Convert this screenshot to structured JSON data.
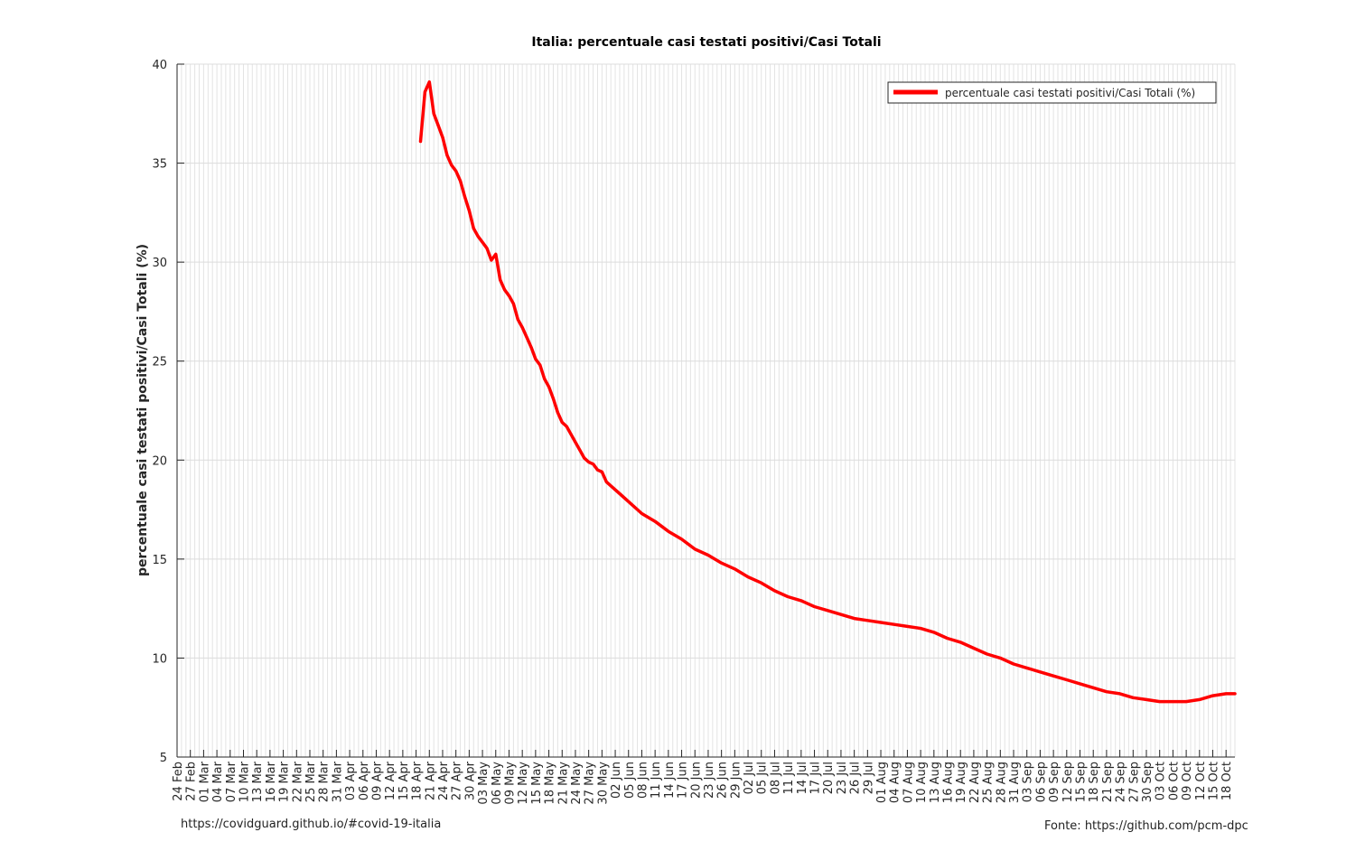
{
  "chart_data": {
    "type": "line",
    "title": "Italia: percentuale casi testati positivi/Casi Totali",
    "xlabel": "",
    "ylabel": "percentuale casi testati positivi/Casi Totali (%)",
    "ylim": [
      5,
      40
    ],
    "yticks": [
      5,
      10,
      15,
      20,
      25,
      30,
      35,
      40
    ],
    "xlim": [
      "2020-02-24",
      "2020-10-20"
    ],
    "xticks": [
      "24 Feb",
      "27 Feb",
      "01 Mar",
      "04 Mar",
      "07 Mar",
      "10 Mar",
      "13 Mar",
      "16 Mar",
      "19 Mar",
      "22 Mar",
      "25 Mar",
      "28 Mar",
      "31 Mar",
      "03 Apr",
      "06 Apr",
      "09 Apr",
      "12 Apr",
      "15 Apr",
      "18 Apr",
      "21 Apr",
      "24 Apr",
      "27 Apr",
      "30 Apr",
      "03 May",
      "06 May",
      "09 May",
      "12 May",
      "15 May",
      "18 May",
      "21 May",
      "24 May",
      "27 May",
      "30 May",
      "02 Jun",
      "05 Jun",
      "08 Jun",
      "11 Jun",
      "14 Jun",
      "17 Jun",
      "20 Jun",
      "23 Jun",
      "26 Jun",
      "29 Jun",
      "02 Jul",
      "05 Jul",
      "08 Jul",
      "11 Jul",
      "14 Jul",
      "17 Jul",
      "20 Jul",
      "23 Jul",
      "26 Jul",
      "29 Jul",
      "01 Aug",
      "04 Aug",
      "07 Aug",
      "10 Aug",
      "13 Aug",
      "16 Aug",
      "19 Aug",
      "22 Aug",
      "25 Aug",
      "28 Aug",
      "31 Aug",
      "03 Sep",
      "06 Sep",
      "09 Sep",
      "12 Sep",
      "15 Sep",
      "18 Sep",
      "21 Sep",
      "24 Sep",
      "27 Sep",
      "30 Sep",
      "03 Oct",
      "06 Oct",
      "09 Oct",
      "12 Oct",
      "15 Oct",
      "18 Oct"
    ],
    "grid": true,
    "legend_position": "top-right",
    "series": [
      {
        "name": "percentuale casi testati positivi/Casi Totali (%)",
        "color": "#ff0000",
        "points": [
          [
            "2020-04-19",
            36.1
          ],
          [
            "2020-04-20",
            38.6
          ],
          [
            "2020-04-21",
            39.1
          ],
          [
            "2020-04-22",
            37.5
          ],
          [
            "2020-04-23",
            36.9
          ],
          [
            "2020-04-24",
            36.3
          ],
          [
            "2020-04-25",
            35.4
          ],
          [
            "2020-04-26",
            34.9
          ],
          [
            "2020-04-27",
            34.6
          ],
          [
            "2020-04-28",
            34.1
          ],
          [
            "2020-04-29",
            33.3
          ],
          [
            "2020-04-30",
            32.6
          ],
          [
            "2020-05-01",
            31.7
          ],
          [
            "2020-05-02",
            31.3
          ],
          [
            "2020-05-03",
            31.0
          ],
          [
            "2020-05-04",
            30.7
          ],
          [
            "2020-05-05",
            30.1
          ],
          [
            "2020-05-06",
            30.4
          ],
          [
            "2020-05-07",
            29.1
          ],
          [
            "2020-05-08",
            28.6
          ],
          [
            "2020-05-09",
            28.3
          ],
          [
            "2020-05-10",
            27.9
          ],
          [
            "2020-05-11",
            27.1
          ],
          [
            "2020-05-12",
            26.7
          ],
          [
            "2020-05-13",
            26.2
          ],
          [
            "2020-05-14",
            25.7
          ],
          [
            "2020-05-15",
            25.1
          ],
          [
            "2020-05-16",
            24.8
          ],
          [
            "2020-05-17",
            24.1
          ],
          [
            "2020-05-18",
            23.7
          ],
          [
            "2020-05-19",
            23.1
          ],
          [
            "2020-05-20",
            22.4
          ],
          [
            "2020-05-21",
            21.9
          ],
          [
            "2020-05-22",
            21.7
          ],
          [
            "2020-05-23",
            21.3
          ],
          [
            "2020-05-24",
            20.9
          ],
          [
            "2020-05-25",
            20.5
          ],
          [
            "2020-05-26",
            20.1
          ],
          [
            "2020-05-27",
            19.9
          ],
          [
            "2020-05-28",
            19.8
          ],
          [
            "2020-05-29",
            19.5
          ],
          [
            "2020-05-30",
            19.4
          ],
          [
            "2020-05-31",
            18.9
          ],
          [
            "2020-06-01",
            18.7
          ],
          [
            "2020-06-02",
            18.5
          ],
          [
            "2020-06-03",
            18.3
          ],
          [
            "2020-06-05",
            17.9
          ],
          [
            "2020-06-08",
            17.3
          ],
          [
            "2020-06-11",
            16.9
          ],
          [
            "2020-06-14",
            16.4
          ],
          [
            "2020-06-17",
            16.0
          ],
          [
            "2020-06-20",
            15.5
          ],
          [
            "2020-06-23",
            15.2
          ],
          [
            "2020-06-26",
            14.8
          ],
          [
            "2020-06-29",
            14.5
          ],
          [
            "2020-07-02",
            14.1
          ],
          [
            "2020-07-05",
            13.8
          ],
          [
            "2020-07-08",
            13.4
          ],
          [
            "2020-07-11",
            13.1
          ],
          [
            "2020-07-14",
            12.9
          ],
          [
            "2020-07-17",
            12.6
          ],
          [
            "2020-07-20",
            12.4
          ],
          [
            "2020-07-23",
            12.2
          ],
          [
            "2020-07-26",
            12.0
          ],
          [
            "2020-07-29",
            11.9
          ],
          [
            "2020-08-01",
            11.8
          ],
          [
            "2020-08-04",
            11.7
          ],
          [
            "2020-08-07",
            11.6
          ],
          [
            "2020-08-10",
            11.5
          ],
          [
            "2020-08-13",
            11.3
          ],
          [
            "2020-08-16",
            11.0
          ],
          [
            "2020-08-19",
            10.8
          ],
          [
            "2020-08-22",
            10.5
          ],
          [
            "2020-08-25",
            10.2
          ],
          [
            "2020-08-28",
            10.0
          ],
          [
            "2020-08-31",
            9.7
          ],
          [
            "2020-09-03",
            9.5
          ],
          [
            "2020-09-06",
            9.3
          ],
          [
            "2020-09-09",
            9.1
          ],
          [
            "2020-09-12",
            8.9
          ],
          [
            "2020-09-15",
            8.7
          ],
          [
            "2020-09-18",
            8.5
          ],
          [
            "2020-09-21",
            8.3
          ],
          [
            "2020-09-24",
            8.2
          ],
          [
            "2020-09-27",
            8.0
          ],
          [
            "2020-09-30",
            7.9
          ],
          [
            "2020-10-03",
            7.8
          ],
          [
            "2020-10-06",
            7.8
          ],
          [
            "2020-10-09",
            7.8
          ],
          [
            "2020-10-12",
            7.9
          ],
          [
            "2020-10-15",
            8.1
          ],
          [
            "2020-10-18",
            8.2
          ],
          [
            "2020-10-20",
            8.2
          ]
        ]
      }
    ]
  },
  "footer": {
    "left_source": "https://covidguard.github.io/#covid-19-italia",
    "right_source": "Fonte: https://github.com/pcm-dpc"
  }
}
